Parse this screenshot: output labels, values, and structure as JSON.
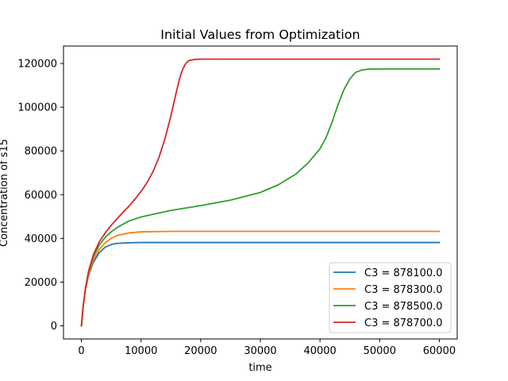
{
  "chart_data": {
    "type": "line",
    "title": "Initial Values from Optimization",
    "xlabel": "time",
    "ylabel": "Concentration of s15",
    "xlim": [
      -3000,
      63000
    ],
    "ylim": [
      -6000,
      128000
    ],
    "xticks": [
      0,
      10000,
      20000,
      30000,
      40000,
      50000,
      60000
    ],
    "yticks": [
      0,
      20000,
      40000,
      60000,
      80000,
      100000,
      120000
    ],
    "grid": false,
    "legend_position": "lower right",
    "series": [
      {
        "name": "C3 = 878100.0",
        "color": "#1f77b4",
        "x": [
          0,
          300,
          700,
          1200,
          2000,
          3000,
          4000,
          5000,
          6000,
          8000,
          10000,
          15000,
          20000,
          30000,
          40000,
          50000,
          60000
        ],
        "y": [
          0,
          9000,
          17000,
          23000,
          29000,
          33500,
          36000,
          37200,
          37700,
          38000,
          38100,
          38100,
          38100,
          38100,
          38100,
          38100,
          38100
        ]
      },
      {
        "name": "C3 = 878300.0",
        "color": "#ff7f0e",
        "x": [
          0,
          300,
          700,
          1200,
          2000,
          3000,
          4000,
          5000,
          6000,
          8000,
          10000,
          12000,
          15000,
          20000,
          30000,
          40000,
          50000,
          60000
        ],
        "y": [
          0,
          9000,
          17000,
          23500,
          30000,
          35000,
          38000,
          40000,
          41300,
          42500,
          43000,
          43100,
          43200,
          43200,
          43200,
          43200,
          43200,
          43200
        ]
      },
      {
        "name": "C3 = 878500.0",
        "color": "#2ca02c",
        "x": [
          0,
          300,
          700,
          1200,
          2000,
          3000,
          4000,
          5000,
          6000,
          8000,
          10000,
          12000,
          15000,
          20000,
          25000,
          30000,
          33000,
          36000,
          38000,
          40000,
          41000,
          42000,
          43000,
          44000,
          45000,
          46000,
          47000,
          48000,
          50000,
          55000,
          60000
        ],
        "y": [
          0,
          9000,
          17500,
          24500,
          31500,
          37000,
          40500,
          43000,
          45000,
          48000,
          49800,
          51000,
          52800,
          55000,
          57500,
          61000,
          64500,
          69500,
          74500,
          81000,
          86000,
          93000,
          101000,
          108000,
          113000,
          116000,
          117000,
          117400,
          117500,
          117500,
          117500
        ]
      },
      {
        "name": "C3 = 878700.0",
        "color": "#d62728",
        "x": [
          0,
          300,
          700,
          1200,
          2000,
          3000,
          4000,
          5000,
          6000,
          7000,
          8000,
          9000,
          10000,
          11000,
          12000,
          13000,
          14000,
          15000,
          16000,
          16500,
          17000,
          17500,
          18000,
          19000,
          20000,
          25000,
          30000,
          40000,
          50000,
          60000
        ],
        "y": [
          0,
          9000,
          17500,
          25000,
          32500,
          38500,
          42500,
          46000,
          49000,
          52000,
          54800,
          58000,
          61500,
          65500,
          70500,
          77000,
          85500,
          96000,
          108000,
          113500,
          117500,
          120000,
          121300,
          121900,
          122000,
          122000,
          122000,
          122000,
          122000,
          122000
        ]
      }
    ]
  }
}
